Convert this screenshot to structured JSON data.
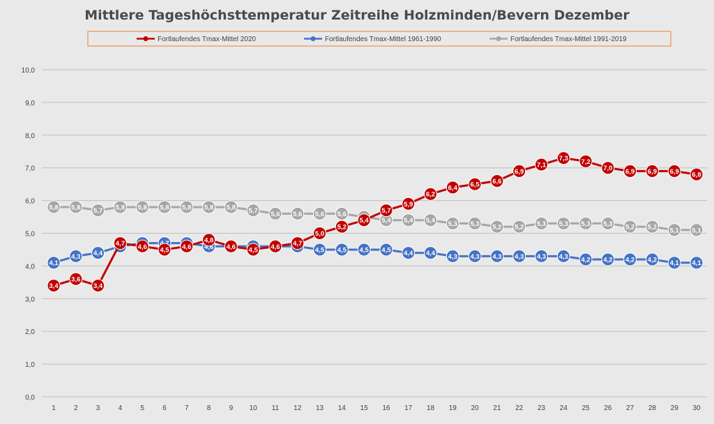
{
  "chart_data": {
    "type": "line",
    "title": "Mittlere Tageshöchsttemperatur Zeitreihe Holzminden/Bevern Dezember",
    "xlabel": "",
    "ylabel": "",
    "ylim": [
      0,
      10
    ],
    "yticks": [
      "0,0",
      "1,0",
      "2,0",
      "3,0",
      "4,0",
      "5,0",
      "6,0",
      "7,0",
      "8,0",
      "9,0",
      "10,0"
    ],
    "x": [
      1,
      2,
      3,
      4,
      5,
      6,
      7,
      8,
      9,
      10,
      11,
      12,
      13,
      14,
      15,
      16,
      17,
      18,
      19,
      20,
      21,
      22,
      23,
      24,
      25,
      26,
      27,
      28,
      29,
      30
    ],
    "grid": true,
    "legend_position": "top",
    "series": [
      {
        "name": "Fortlaufendes Tmax-Mittel 1991-2019",
        "color": "#a6a6a6",
        "values": [
          5.8,
          5.8,
          5.7,
          5.8,
          5.8,
          5.8,
          5.8,
          5.8,
          5.8,
          5.7,
          5.6,
          5.6,
          5.6,
          5.6,
          5.5,
          5.4,
          5.4,
          5.4,
          5.3,
          5.3,
          5.2,
          5.2,
          5.3,
          5.3,
          5.3,
          5.3,
          5.2,
          5.2,
          5.1,
          5.1
        ],
        "labels": [
          "5,8",
          "5,8",
          "5,7",
          "5,8",
          "5,8",
          "5,8",
          "5,8",
          "5,8",
          "5,8",
          "5,7",
          "5,6",
          "5,6",
          "5,6",
          "5,6",
          "5,5",
          "5,4",
          "5,4",
          "5,4",
          "5,3",
          "5,3",
          "5,2",
          "5,2",
          "5,3",
          "5,3",
          "5,3",
          "5,3",
          "5,2",
          "5,2",
          "5,1",
          "5,1"
        ]
      },
      {
        "name": "Fortlaufendes Tmax-Mittel 1961-1990",
        "color": "#4472c4",
        "values": [
          4.1,
          4.3,
          4.4,
          4.6,
          4.7,
          4.7,
          4.7,
          4.6,
          4.6,
          4.6,
          4.6,
          4.6,
          4.5,
          4.5,
          4.5,
          4.5,
          4.4,
          4.4,
          4.3,
          4.3,
          4.3,
          4.3,
          4.3,
          4.3,
          4.2,
          4.2,
          4.2,
          4.2,
          4.1,
          4.1
        ],
        "labels": [
          "4,1",
          "4,3",
          "4,4",
          "4,6",
          "4,7",
          "4,7",
          "4,7",
          "4,6",
          "4,6",
          "4,6",
          "4,6",
          "4,6",
          "4,5",
          "4,5",
          "4,5",
          "4,5",
          "4,4",
          "4,4",
          "4,3",
          "4,3",
          "4,3",
          "4,3",
          "4,3",
          "4,3",
          "4,2",
          "4,2",
          "4,2",
          "4,2",
          "4,1",
          "4,1"
        ]
      },
      {
        "name": "Fortlaufendes Tmax-Mittel 2020",
        "color": "#c00000",
        "values": [
          3.4,
          3.6,
          3.4,
          4.7,
          4.6,
          4.5,
          4.6,
          4.8,
          4.6,
          4.5,
          4.6,
          4.7,
          5.0,
          5.2,
          5.4,
          5.7,
          5.9,
          6.2,
          6.4,
          6.5,
          6.6,
          6.9,
          7.1,
          7.3,
          7.2,
          7.0,
          6.9,
          6.9,
          6.9,
          6.8
        ],
        "labels": [
          "3,4",
          "3,6",
          "3,4",
          "4,7",
          "4,6",
          "4,5",
          "4,6",
          "4,8",
          "4,6",
          "4,5",
          "4,6",
          "4,7",
          "5,0",
          "5,2",
          "5,4",
          "5,7",
          "5,9",
          "6,2",
          "6,4",
          "6,5",
          "6,6",
          "6,9",
          "7,1",
          "7,3",
          "7,2",
          "7,0",
          "6,9",
          "6,9",
          "6,9",
          "6,8"
        ]
      }
    ],
    "legend_order": [
      "Fortlaufendes Tmax-Mittel 2020",
      "Fortlaufendes Tmax-Mittel 1961-1990",
      "Fortlaufendes Tmax-Mittel 1991-2019"
    ],
    "colors": {
      "background": "#e9e9e9",
      "gridline": "#bfbfbf",
      "legend_border": "#ed7d31"
    }
  }
}
